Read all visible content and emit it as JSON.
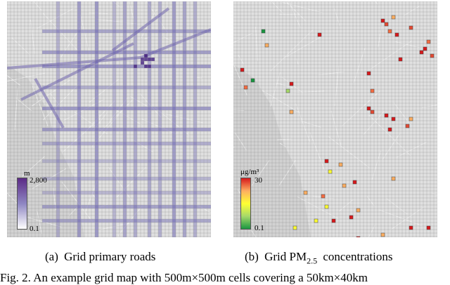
{
  "panels": [
    {
      "id": "a",
      "caption_tag": "(a)",
      "caption_text": "Grid primary roads",
      "legend": {
        "unit": "m",
        "max_label": "2,800",
        "min_label": "0.1",
        "color_low": "#ffffff",
        "color_high": "#5b2a86"
      }
    },
    {
      "id": "b",
      "caption_tag": "(b)",
      "caption_text": "Grid PM",
      "caption_sub": "2.5",
      "caption_tail": "concentrations",
      "legend": {
        "unit": "μg/m³",
        "max_label": "30",
        "min_label": "0.1",
        "color_low": "#1a9641",
        "color_mid": "#ffff33",
        "color_high": "#d7191c"
      }
    }
  ],
  "figure_caption": "Fig. 2.  An example grid map with 500m×500m cells covering a 50km×40km"
}
